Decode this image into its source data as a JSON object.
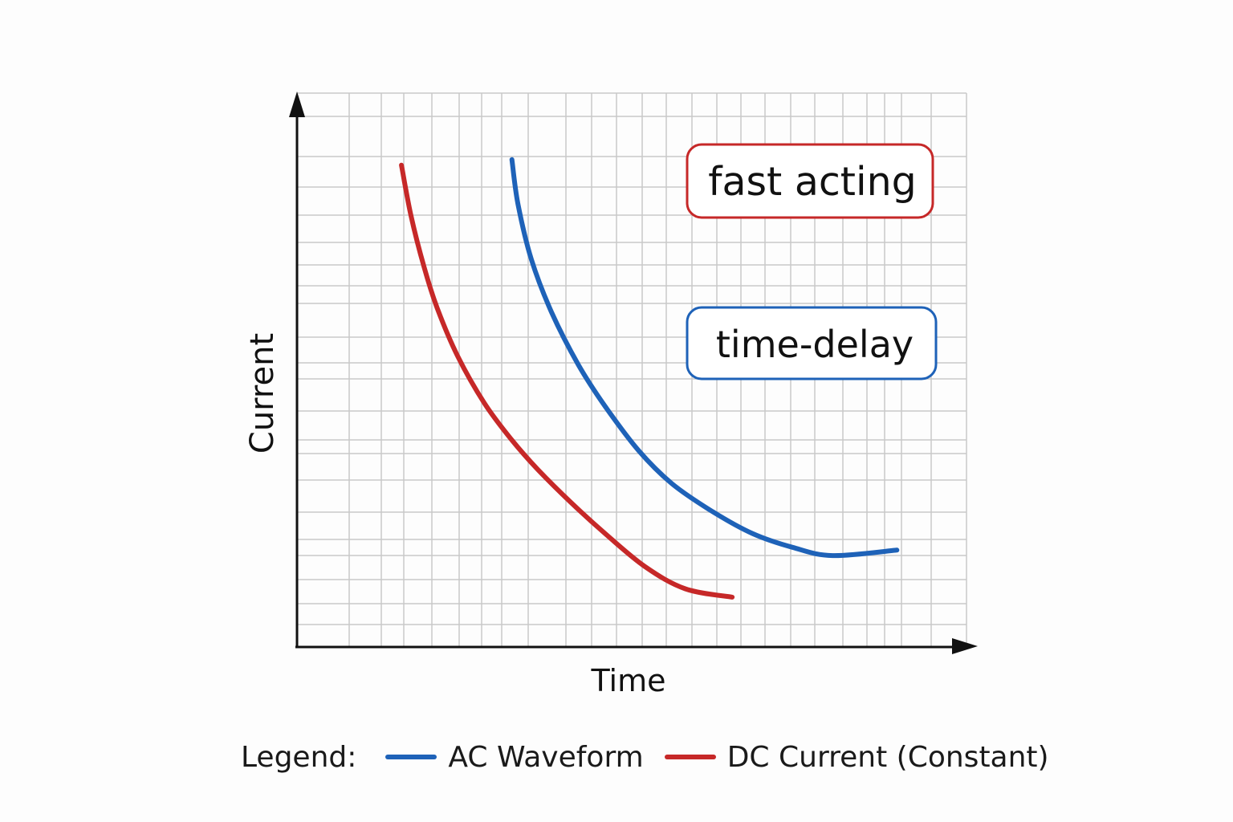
{
  "chart_data": {
    "type": "line",
    "xlabel": "Time",
    "ylabel": "Current",
    "xlim": [
      0,
      100
    ],
    "ylim": [
      0,
      100
    ],
    "grid": true,
    "series": [
      {
        "name": "DC Current (Constant)",
        "color": "#c62828",
        "x": [
          15.6,
          17,
          19,
          21,
          24,
          28,
          32,
          36,
          41,
          46,
          52,
          58,
          65
        ],
        "y": [
          87,
          78,
          68.5,
          61,
          52.5,
          44,
          37.5,
          32,
          26,
          20.5,
          14.5,
          10.5,
          9
        ]
      },
      {
        "name": "AC Waveform",
        "color": "#1e62b8",
        "x": [
          32.1,
          33,
          35,
          38,
          42,
          46,
          51,
          56,
          62,
          68,
          74,
          80,
          89.6
        ],
        "y": [
          88,
          80,
          70,
          60.5,
          51,
          43.5,
          35.5,
          29.5,
          24.5,
          20.5,
          18,
          16.5,
          17.5
        ]
      }
    ],
    "annotations": [
      {
        "text": "fast acting",
        "color": "#c62828"
      },
      {
        "text": "time-delay",
        "color": "#1e62b8"
      }
    ]
  },
  "legend": {
    "title": "Legend:",
    "items": [
      {
        "label": "AC Waveform",
        "color": "#1e62b8"
      },
      {
        "label": "DC Current (Constant)",
        "color": "#c62828"
      }
    ]
  }
}
